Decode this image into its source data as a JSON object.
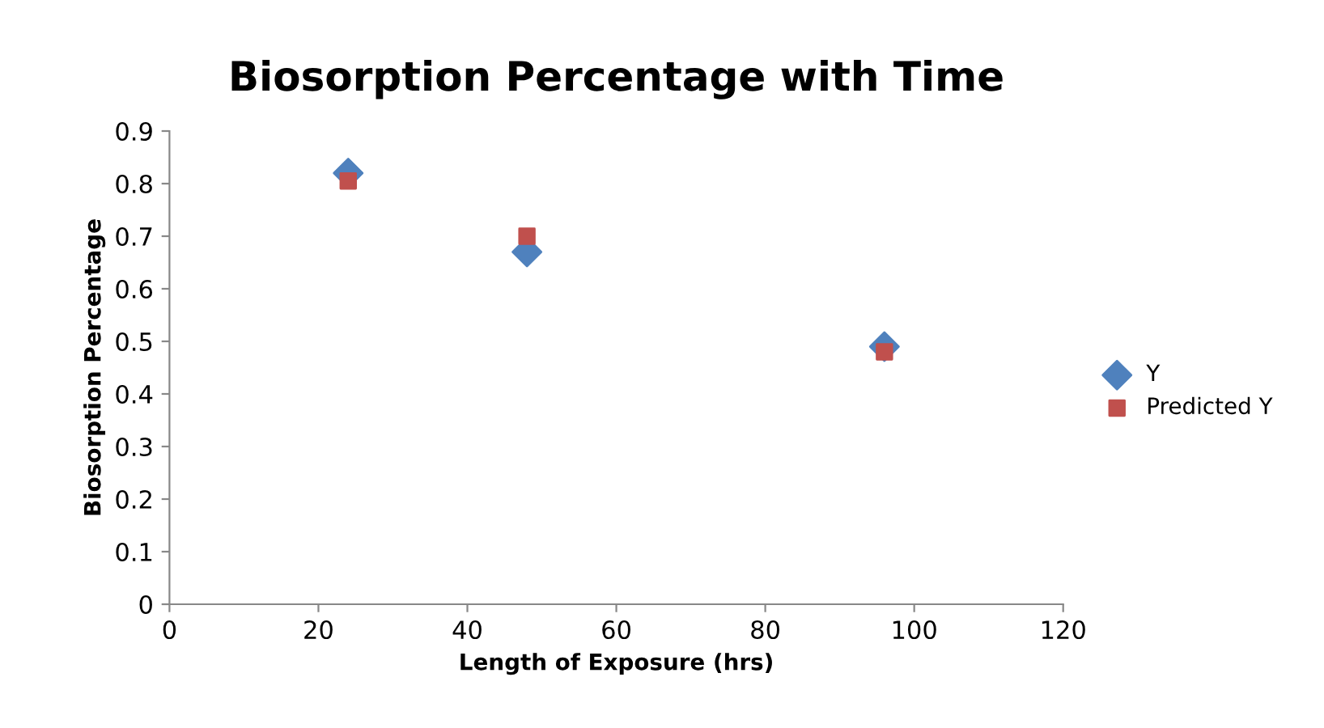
{
  "chart_data": {
    "type": "scatter",
    "title": "Biosorption Percentage with Time",
    "xlabel": "Length of Exposure (hrs)",
    "ylabel": "Biosorption Percentage",
    "x": [
      24,
      48,
      96
    ],
    "series": [
      {
        "name": "Y",
        "color": "#4f81bd",
        "marker": "diamond",
        "values": [
          0.82,
          0.67,
          0.49
        ]
      },
      {
        "name": "Predicted Y",
        "color": "#c0504d",
        "marker": "square",
        "values": [
          0.805,
          0.7,
          0.48
        ]
      }
    ],
    "xlim": [
      0,
      120
    ],
    "xticks": [
      0,
      20,
      40,
      60,
      80,
      100,
      120
    ],
    "ylim": [
      0,
      0.9
    ],
    "yticks": [
      0,
      0.1,
      0.2,
      0.3,
      0.4,
      0.5,
      0.6,
      0.7,
      0.8,
      0.9
    ],
    "grid": false,
    "legend": "right"
  }
}
